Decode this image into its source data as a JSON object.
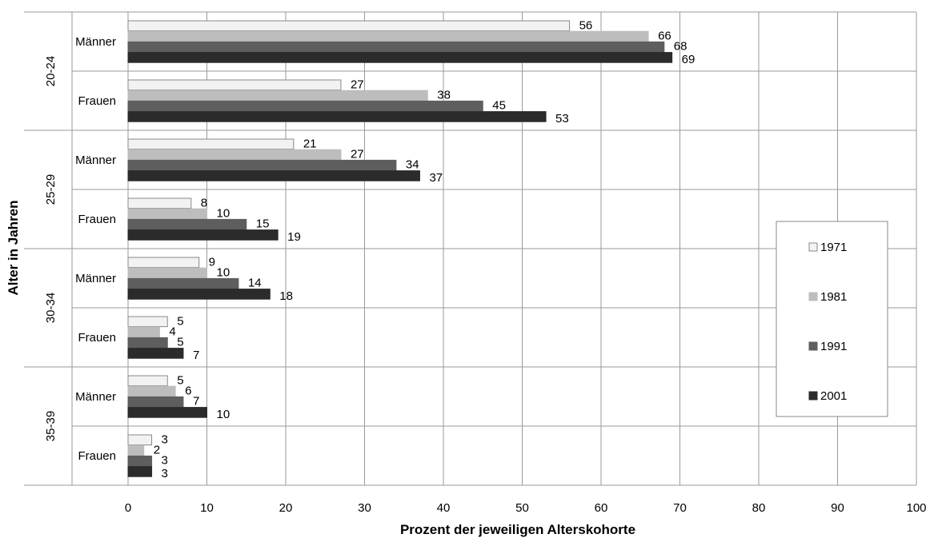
{
  "chart_data": {
    "type": "bar",
    "orientation": "horizontal",
    "title": "",
    "xlabel": "Prozent der jeweiligen Alterskohorte",
    "ylabel": "Alter in Jahren",
    "xlim": [
      0,
      100
    ],
    "xticks": [
      0,
      10,
      20,
      30,
      40,
      50,
      60,
      70,
      80,
      90,
      100
    ],
    "grid": true,
    "legend_position": "right",
    "groups": [
      {
        "label": "20-24",
        "categories": [
          "Männer",
          "Frauen"
        ]
      },
      {
        "label": "25-29",
        "categories": [
          "Männer",
          "Frauen"
        ]
      },
      {
        "label": "30-34",
        "categories": [
          "Männer",
          "Frauen"
        ]
      },
      {
        "label": "35-39",
        "categories": [
          "Männer",
          "Frauen"
        ]
      }
    ],
    "series": [
      {
        "name": "1971",
        "color": "#f2f2f2",
        "stroke": "#888888",
        "values": [
          56,
          27,
          21,
          8,
          9,
          5,
          5,
          3
        ]
      },
      {
        "name": "1981",
        "color": "#bdbdbd",
        "stroke": "#bdbdbd",
        "values": [
          66,
          38,
          27,
          10,
          10,
          4,
          6,
          2
        ]
      },
      {
        "name": "1991",
        "color": "#5e5e5e",
        "stroke": "#5e5e5e",
        "values": [
          68,
          45,
          34,
          15,
          14,
          5,
          7,
          3
        ]
      },
      {
        "name": "2001",
        "color": "#2b2b2b",
        "stroke": "#2b2b2b",
        "values": [
          69,
          53,
          37,
          19,
          18,
          7,
          10,
          3
        ]
      }
    ]
  }
}
